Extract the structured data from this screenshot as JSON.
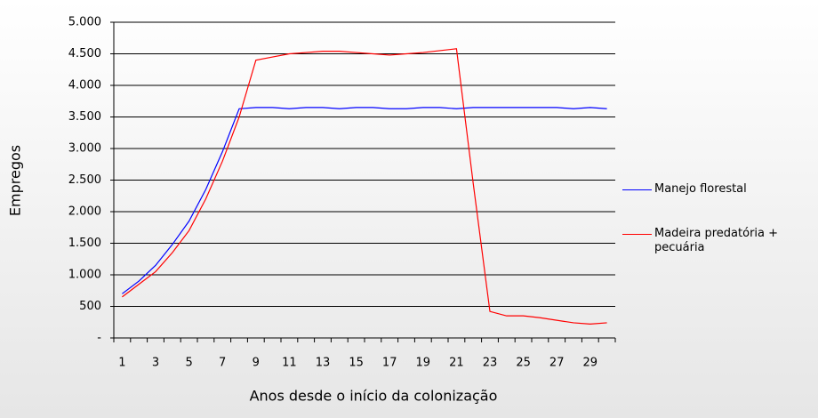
{
  "chart_data": {
    "type": "line",
    "x_label": "Anos desde o início da colonização",
    "y_label": "Empregos",
    "categories": [
      "1",
      null,
      "3",
      null,
      "5",
      null,
      "7",
      null,
      "9",
      null,
      "11",
      null,
      "13",
      null,
      "15",
      null,
      "17",
      null,
      "19",
      null,
      "21",
      null,
      "23",
      null,
      "25",
      null,
      "27",
      null,
      "29",
      null
    ],
    "series": [
      {
        "name": "Manejo florestal",
        "color": "#0000ff",
        "values": [
          700,
          900,
          1150,
          1480,
          1850,
          2350,
          2950,
          3630,
          3650,
          3650,
          3630,
          3650,
          3650,
          3630,
          3650,
          3650,
          3630,
          3630,
          3650,
          3650,
          3630,
          3650,
          3650,
          3650,
          3650,
          3650,
          3650,
          3630,
          3650,
          3630
        ]
      },
      {
        "name": "Madeira predatória + pecuária",
        "color": "#ff0000",
        "values": [
          650,
          850,
          1050,
          1350,
          1700,
          2200,
          2800,
          3500,
          4400,
          4450,
          4500,
          4520,
          4540,
          4540,
          4520,
          4500,
          4480,
          4500,
          4520,
          4550,
          4580,
          2450,
          420,
          350,
          350,
          320,
          280,
          240,
          220,
          240
        ]
      }
    ],
    "ylim": [
      0,
      5000
    ],
    "yticks": [
      {
        "value": 0,
        "label": "-"
      },
      500,
      {
        "value": 1000,
        "label": "1.000"
      },
      {
        "value": 1500,
        "label": "1.500"
      },
      {
        "value": 2000,
        "label": "2.000"
      },
      {
        "value": 2500,
        "label": "2.500"
      },
      {
        "value": 3000,
        "label": "3.000"
      },
      {
        "value": 3500,
        "label": "3.500"
      },
      {
        "value": 4000,
        "label": "4.000"
      },
      {
        "value": 4500,
        "label": "4.500"
      },
      {
        "value": 5000,
        "label": "5.000"
      }
    ],
    "grid": true
  }
}
